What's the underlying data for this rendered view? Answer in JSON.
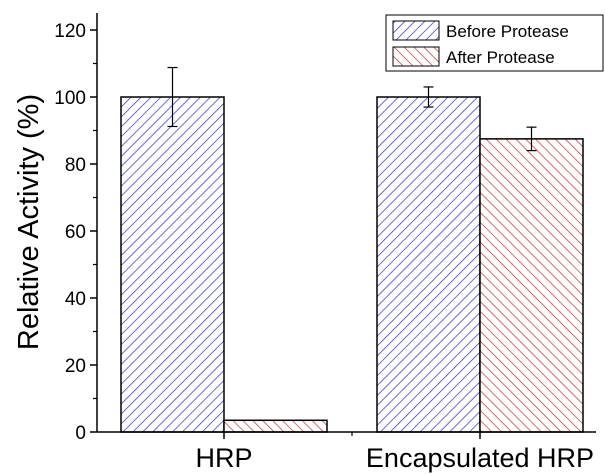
{
  "chart_data": {
    "type": "bar",
    "categories": [
      "HRP",
      "Encapsulated HRP"
    ],
    "series": [
      {
        "name": "Before Protease",
        "values": [
          100,
          100
        ],
        "errors": [
          8.8,
          3.0
        ],
        "color": "#2b2bd6",
        "hatch": "forward-diagonal"
      },
      {
        "name": "After Protease",
        "values": [
          3.5,
          87.5
        ],
        "errors": [
          0,
          3.5
        ],
        "color": "#cc2b2b",
        "hatch": "back-diagonal"
      }
    ],
    "ylabel": "Relative Activity (%)",
    "xlabel": "",
    "ylim": [
      0,
      120
    ],
    "yticks": [
      0,
      20,
      40,
      60,
      80,
      100,
      120
    ],
    "grid": false,
    "legend_position": "top-right"
  }
}
